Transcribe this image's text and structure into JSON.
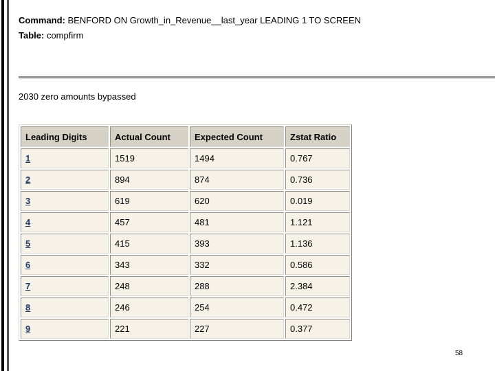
{
  "report": {
    "command_label": "Command:",
    "command_text": "BENFORD ON Growth_in_Revenue__last_year LEADING 1 TO SCREEN",
    "table_label": "Table:",
    "table_name": "compfirm",
    "note": "2030 zero amounts bypassed",
    "table": {
      "headers": [
        "Leading Digits",
        "Actual Count",
        "Expected Count",
        "Zstat Ratio"
      ],
      "rows": [
        {
          "digit": "1",
          "actual": "1519",
          "expected": "1494",
          "zstat": "0.767"
        },
        {
          "digit": "2",
          "actual": "894",
          "expected": "874",
          "zstat": "0.736"
        },
        {
          "digit": "3",
          "actual": "619",
          "expected": "620",
          "zstat": "0.019"
        },
        {
          "digit": "4",
          "actual": "457",
          "expected": "481",
          "zstat": "1.121"
        },
        {
          "digit": "5",
          "actual": "415",
          "expected": "393",
          "zstat": "1.136"
        },
        {
          "digit": "6",
          "actual": "343",
          "expected": "332",
          "zstat": "0.586"
        },
        {
          "digit": "7",
          "actual": "248",
          "expected": "288",
          "zstat": "2.384"
        },
        {
          "digit": "8",
          "actual": "246",
          "expected": "254",
          "zstat": "0.472"
        },
        {
          "digit": "9",
          "actual": "221",
          "expected": "227",
          "zstat": "0.377"
        }
      ]
    }
  },
  "page": {
    "page_number": "58"
  },
  "colors": {
    "header_bg": "#d5d1c5",
    "cell_bg": "#f7f2e7",
    "link_color": "#1f3864",
    "left_bar_black": "#000000",
    "left_bar_gray": "#57575b"
  }
}
